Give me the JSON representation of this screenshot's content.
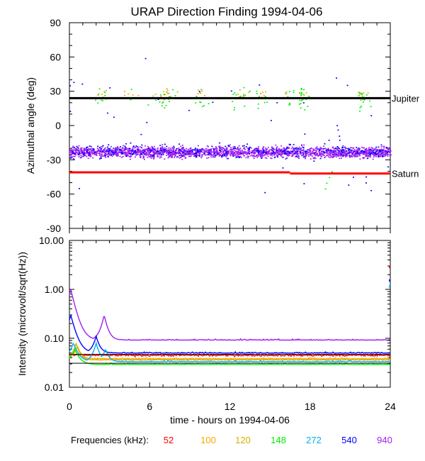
{
  "title": "URAP Direction Finding  1994-04-06",
  "frequencies_label": "Frequencies (kHz):",
  "chart_data": [
    {
      "type": "scatter",
      "title": "URAP Direction Finding  1994-04-06",
      "xlabel": "",
      "ylabel": "Azimuthal angle (deg)",
      "xlim": [
        0,
        24
      ],
      "ylim": [
        -90,
        90
      ],
      "y_ticks": [
        -90,
        -60,
        -30,
        0,
        30,
        60,
        90
      ],
      "reference_lines": [
        {
          "name": "Jupiter",
          "label": "Jupiter",
          "color": "#000000",
          "segments": [
            {
              "x": [
                0,
                24
              ],
              "y": [
                24,
                24
              ]
            }
          ]
        },
        {
          "name": "Saturn",
          "label": "Saturn",
          "color": "#ff0000",
          "segments": [
            {
              "x": [
                0,
                16.5
              ],
              "y": [
                -41,
                -41
              ]
            },
            {
              "x": [
                16.5,
                24
              ],
              "y": [
                -42,
                -42
              ]
            }
          ]
        }
      ],
      "series": [
        {
          "name": "940",
          "color": "#a020f0",
          "description": "dense band",
          "y_center": -23,
          "y_spread": 8
        },
        {
          "name": "540",
          "color": "#0000ff",
          "description": "band plus outliers",
          "y_center": -22,
          "y_spread": 10
        },
        {
          "name": "148",
          "color": "#00ee00",
          "description": "scattered points near Jupiter line",
          "y_center": 24,
          "y_spread": 10
        },
        {
          "name": "100",
          "color": "#ffa500",
          "description": "scattered points",
          "y_center": 28,
          "y_spread": 5
        },
        {
          "name": "120",
          "color": "#d4b000",
          "description": "scattered points",
          "y_center": 28,
          "y_spread": 5
        }
      ]
    },
    {
      "type": "line",
      "title": "",
      "xlabel": "time - hours on 1994-04-06",
      "ylabel": "Intensity (microvolt/sqrt(Hz))",
      "yscale": "log",
      "xlim": [
        0,
        24
      ],
      "ylim": [
        0.01,
        10
      ],
      "x_ticks": [
        0,
        6,
        12,
        18,
        24
      ],
      "y_ticks": [
        0.01,
        0.1,
        1,
        10
      ],
      "y_tick_labels": [
        "0.01",
        "0.10",
        "1.00",
        "10.00"
      ],
      "reference_lines": [
        {
          "name": "background-level-1",
          "color": "#000000",
          "y": 0.047
        },
        {
          "name": "background-level-2",
          "color": "#000000",
          "y": 0.031
        }
      ],
      "series": [
        {
          "name": "940",
          "color": "#a020f0",
          "baseline": 0.092,
          "peaks": [
            [
              0.1,
              1.0
            ],
            [
              2.6,
              0.3
            ]
          ]
        },
        {
          "name": "540",
          "color": "#0000ff",
          "baseline": 0.05,
          "peaks": [
            [
              0.1,
              0.3
            ],
            [
              2.0,
              0.11
            ]
          ]
        },
        {
          "name": "52",
          "color": "#ff0000",
          "baseline": 0.045,
          "peaks": []
        },
        {
          "name": "100",
          "color": "#ffa500",
          "baseline": 0.038,
          "peaks": [
            [
              0.6,
              0.07
            ]
          ]
        },
        {
          "name": "120",
          "color": "#d4b000",
          "baseline": 0.036,
          "peaks": [
            [
              0.5,
              0.08
            ]
          ]
        },
        {
          "name": "272",
          "color": "#00b0ee",
          "baseline": 0.033,
          "peaks": [
            [
              0.3,
              0.08
            ],
            [
              2.0,
              0.08
            ],
            [
              2.7,
              0.06
            ]
          ]
        },
        {
          "name": "148",
          "color": "#00ee00",
          "baseline": 0.029,
          "peaks": [
            [
              0.4,
              0.06
            ]
          ]
        }
      ]
    }
  ],
  "legend": {
    "label": "Frequencies (kHz):",
    "items": [
      {
        "name": "52",
        "color": "#ff0000"
      },
      {
        "name": "100",
        "color": "#ffa500"
      },
      {
        "name": "120",
        "color": "#d4b000"
      },
      {
        "name": "148",
        "color": "#00ee00"
      },
      {
        "name": "272",
        "color": "#00b0ee"
      },
      {
        "name": "540",
        "color": "#0000ff"
      },
      {
        "name": "940",
        "color": "#a020f0"
      }
    ]
  }
}
